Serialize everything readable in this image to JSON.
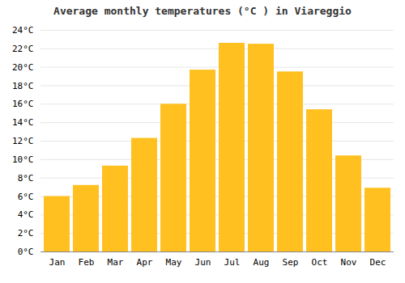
{
  "chart_data": {
    "type": "bar",
    "title": "Average monthly temperatures (°C ) in Viareggio",
    "categories": [
      "Jan",
      "Feb",
      "Mar",
      "Apr",
      "May",
      "Jun",
      "Jul",
      "Aug",
      "Sep",
      "Oct",
      "Nov",
      "Dec"
    ],
    "values": [
      6.0,
      7.2,
      9.3,
      12.3,
      16.0,
      19.7,
      22.6,
      22.5,
      19.5,
      15.4,
      10.4,
      6.9
    ],
    "color": "#FFC020",
    "ylim": [
      0,
      24
    ],
    "yticks": [
      {
        "value": 0,
        "label": "0°C"
      },
      {
        "value": 2,
        "label": "2°C"
      },
      {
        "value": 4,
        "label": "4°C"
      },
      {
        "value": 6,
        "label": "6°C"
      },
      {
        "value": 8,
        "label": "8°C"
      },
      {
        "value": 10,
        "label": "10°C"
      },
      {
        "value": 12,
        "label": "12°C"
      },
      {
        "value": 14,
        "label": "14°C"
      },
      {
        "value": 16,
        "label": "16°C"
      },
      {
        "value": 18,
        "label": "18°C"
      },
      {
        "value": 20,
        "label": "20°C"
      },
      {
        "value": 22,
        "label": "22°C"
      },
      {
        "value": 24,
        "label": "24°C"
      }
    ],
    "grid": true
  }
}
